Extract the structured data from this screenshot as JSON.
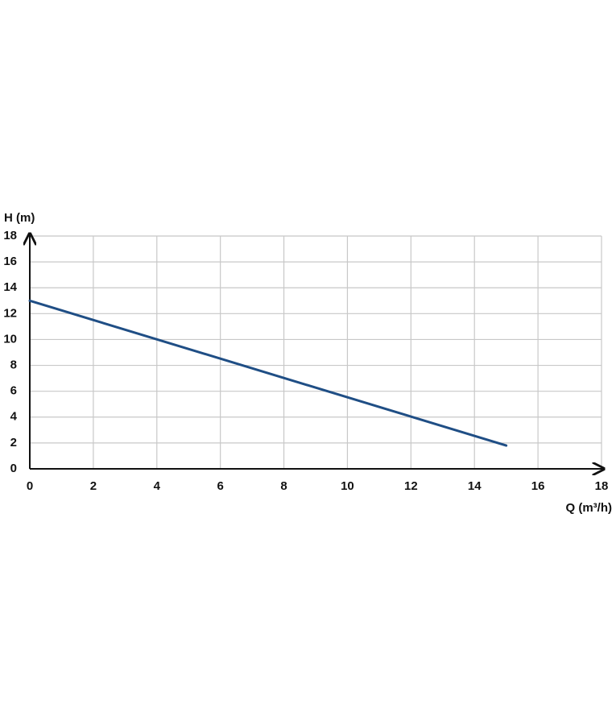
{
  "chart_data": {
    "type": "line",
    "x_label": "Q (m³/h)",
    "y_label": "H (m)",
    "x": [
      0,
      15
    ],
    "series": [
      {
        "color": "#1f4e85",
        "values": [
          13,
          1.8
        ]
      }
    ],
    "xlim": [
      0,
      18
    ],
    "xticks": [
      0,
      2,
      4,
      6,
      8,
      10,
      12,
      14,
      16,
      18
    ],
    "ylim": [
      0,
      18
    ],
    "yticks": [
      0,
      2,
      4,
      6,
      8,
      10,
      12,
      14,
      16,
      18
    ],
    "grid": true
  }
}
